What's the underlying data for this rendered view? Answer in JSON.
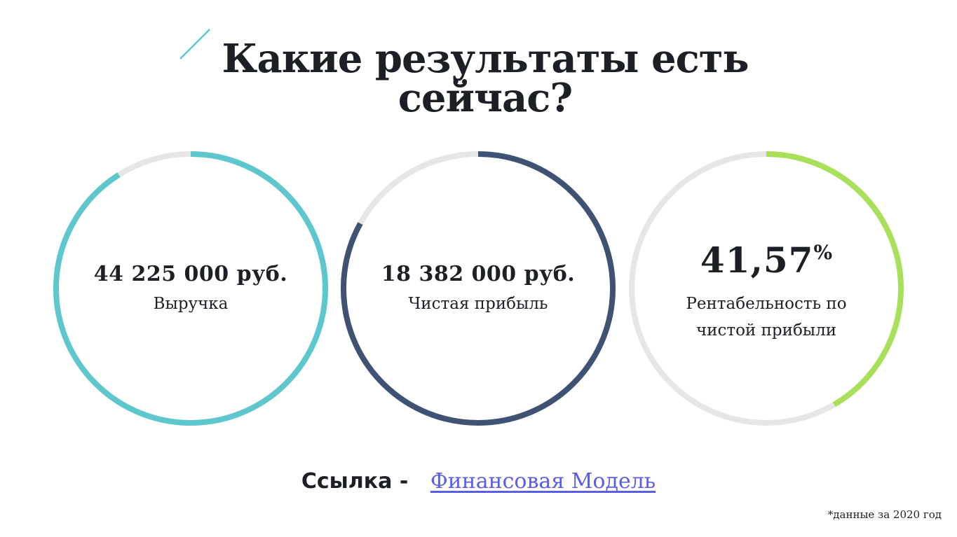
{
  "title": {
    "line1": "Какие результаты есть",
    "line2": "сейчас?"
  },
  "metrics": [
    {
      "value": "44 225 000 руб.",
      "label": "Выручка",
      "color": "#5ec7cd",
      "fill_fraction": 0.91
    },
    {
      "value": "18 382 000 руб.",
      "label": "Чистая прибыль",
      "color": "#3f5273",
      "fill_fraction": 0.83
    },
    {
      "value": "41,57",
      "unit": "%",
      "label_line1": "Рентабельность по",
      "label_line2": "чистой прибыли",
      "color": "#a8e05a",
      "fill_fraction": 0.4157
    }
  ],
  "track_color": "#e6e6e6",
  "link": {
    "prefix": "Ссылка -",
    "text": "Финансовая Модель",
    "color": "#5a5de8"
  },
  "footnote": "*данные за 2020 год",
  "accent_line_color": "#5ec7cd"
}
